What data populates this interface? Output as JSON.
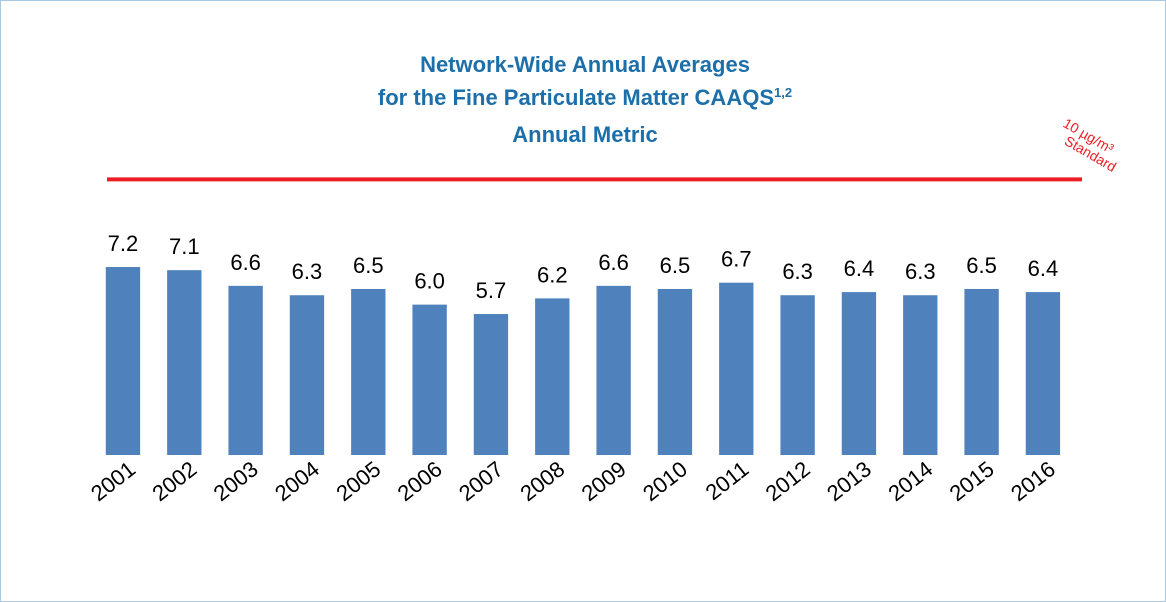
{
  "chart_data": {
    "type": "bar",
    "title": [
      "Network-Wide Annual Averages",
      "for the Fine Particulate Matter CAAQS",
      "Annual Metric"
    ],
    "title_superscript": "1,2",
    "categories": [
      "2001",
      "2002",
      "2003",
      "2004",
      "2005",
      "2006",
      "2007",
      "2008",
      "2009",
      "2010",
      "2011",
      "2012",
      "2013",
      "2014",
      "2015",
      "2016"
    ],
    "values": [
      7.2,
      7.1,
      6.6,
      6.3,
      6.5,
      6.0,
      5.7,
      6.2,
      6.6,
      6.5,
      6.7,
      6.3,
      6.4,
      6.3,
      6.5,
      6.4
    ],
    "value_labels": [
      "7.2",
      "7.1",
      "6.6",
      "6.3",
      "6.5",
      "6.0",
      "5.7",
      "6.2",
      "6.6",
      "6.5",
      "6.7",
      "6.3",
      "6.4",
      "6.3",
      "6.5",
      "6.4"
    ],
    "color": "#4f81bd",
    "ylim": [
      1.2,
      11
    ],
    "standard": {
      "value": 10,
      "label": [
        "10 µg/m³",
        "Standard"
      ],
      "color": "#ee1c25"
    }
  }
}
